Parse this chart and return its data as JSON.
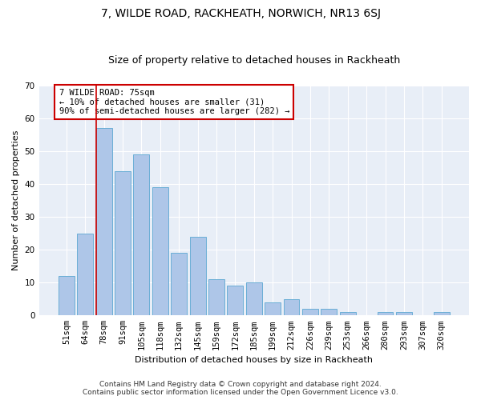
{
  "title": "7, WILDE ROAD, RACKHEATH, NORWICH, NR13 6SJ",
  "subtitle": "Size of property relative to detached houses in Rackheath",
  "xlabel": "Distribution of detached houses by size in Rackheath",
  "ylabel": "Number of detached properties",
  "categories": [
    "51sqm",
    "64sqm",
    "78sqm",
    "91sqm",
    "105sqm",
    "118sqm",
    "132sqm",
    "145sqm",
    "159sqm",
    "172sqm",
    "185sqm",
    "199sqm",
    "212sqm",
    "226sqm",
    "239sqm",
    "253sqm",
    "266sqm",
    "280sqm",
    "293sqm",
    "307sqm",
    "320sqm"
  ],
  "values": [
    12,
    25,
    57,
    44,
    49,
    39,
    19,
    24,
    11,
    9,
    10,
    4,
    5,
    2,
    2,
    1,
    0,
    1,
    1,
    0,
    1
  ],
  "bar_color": "#aec6e8",
  "bar_edge_color": "#6baed6",
  "background_color": "#e8eef7",
  "vline_color": "#cc0000",
  "annotation_text": "7 WILDE ROAD: 75sqm\n← 10% of detached houses are smaller (31)\n90% of semi-detached houses are larger (282) →",
  "annotation_box_color": "#ffffff",
  "annotation_box_edge_color": "#cc0000",
  "ylim": [
    0,
    70
  ],
  "yticks": [
    0,
    10,
    20,
    30,
    40,
    50,
    60,
    70
  ],
  "footer_line1": "Contains HM Land Registry data © Crown copyright and database right 2024.",
  "footer_line2": "Contains public sector information licensed under the Open Government Licence v3.0.",
  "title_fontsize": 10,
  "subtitle_fontsize": 9,
  "axis_label_fontsize": 8,
  "tick_fontsize": 7.5,
  "footer_fontsize": 6.5,
  "annotation_fontsize": 7.5
}
